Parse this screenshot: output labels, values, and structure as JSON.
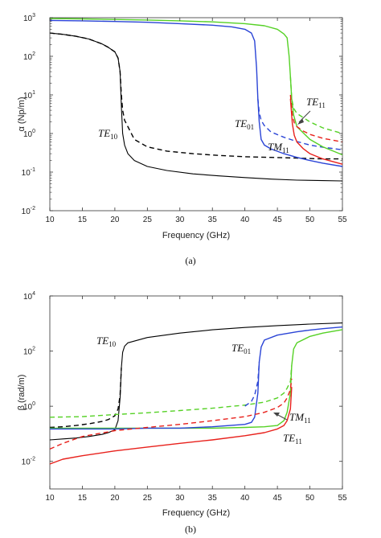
{
  "chart_data": [
    {
      "type": "line",
      "id": "a",
      "caption": "(a)",
      "xlabel": "Frequency (GHz)",
      "ylabel": "α (Np/m)",
      "xlim": [
        10,
        55
      ],
      "ylim": [
        0.01,
        1000
      ],
      "yscale": "log",
      "xticks": [
        "10",
        "15",
        "20",
        "25",
        "30",
        "35",
        "40",
        "45",
        "50",
        "55"
      ],
      "yticks": [
        {
          "base": "10",
          "exp": "-2",
          "value": 0.01
        },
        {
          "base": "10",
          "exp": "-1",
          "value": 0.1
        },
        {
          "base": "10",
          "exp": "0",
          "value": 1
        },
        {
          "base": "10",
          "exp": "1",
          "value": 10
        },
        {
          "base": "10",
          "exp": "2",
          "value": 100
        },
        {
          "base": "10",
          "exp": "3",
          "value": 1000
        }
      ],
      "grid": false,
      "series": [
        {
          "color": "#000000",
          "dash": false,
          "x": [
            10,
            12,
            14,
            16,
            18,
            19,
            20,
            20.5,
            20.8,
            21,
            21.2,
            21.5,
            22,
            23,
            25,
            28,
            32,
            36,
            40,
            44,
            48,
            52,
            55
          ],
          "y": [
            400,
            370,
            330,
            280,
            210,
            170,
            130,
            90,
            40,
            5,
            1,
            0.5,
            0.3,
            0.2,
            0.14,
            0.11,
            0.09,
            0.08,
            0.072,
            0.066,
            0.062,
            0.06,
            0.059
          ]
        },
        {
          "color": "#000000",
          "dash": true,
          "x": [
            10,
            12,
            14,
            16,
            18,
            19,
            20,
            20.5,
            20.8,
            21,
            21.2,
            21.5,
            22,
            23,
            25,
            28,
            32,
            36,
            40,
            44,
            48,
            52,
            55
          ],
          "y": [
            400,
            370,
            330,
            280,
            210,
            170,
            130,
            90,
            40,
            10,
            4,
            2.2,
            1.5,
            0.7,
            0.45,
            0.35,
            0.3,
            0.27,
            0.25,
            0.24,
            0.23,
            0.22,
            0.22
          ]
        },
        {
          "color": "#2a44d6",
          "dash": false,
          "x": [
            10,
            15,
            20,
            25,
            30,
            35,
            38,
            40,
            41,
            41.5,
            41.8,
            42,
            42.2,
            42.5,
            43,
            44,
            46,
            48,
            50,
            52,
            55
          ],
          "y": [
            850,
            830,
            800,
            760,
            700,
            640,
            580,
            500,
            400,
            250,
            50,
            8,
            2,
            0.7,
            0.5,
            0.4,
            0.3,
            0.24,
            0.2,
            0.17,
            0.14
          ]
        },
        {
          "color": "#2a44d6",
          "dash": true,
          "x": [
            42,
            42.2,
            42.5,
            43,
            44,
            46,
            48,
            50,
            52,
            55
          ],
          "y": [
            8,
            3.5,
            2.2,
            1.6,
            1.1,
            0.8,
            0.62,
            0.5,
            0.44,
            0.38
          ]
        },
        {
          "color": "#55d125",
          "dash": false,
          "x": [
            10,
            15,
            20,
            25,
            30,
            35,
            40,
            43,
            45,
            46,
            46.5,
            46.8,
            47,
            47.2,
            47.5,
            48,
            50,
            52,
            55
          ],
          "y": [
            950,
            930,
            900,
            870,
            830,
            780,
            700,
            620,
            500,
            380,
            300,
            100,
            30,
            8,
            3,
            1.5,
            0.7,
            0.45,
            0.28
          ]
        },
        {
          "color": "#55d125",
          "dash": true,
          "x": [
            47,
            47.2,
            47.5,
            48,
            50,
            52,
            55
          ],
          "y": [
            30,
            8,
            4.5,
            3.3,
            2,
            1.4,
            1.0
          ]
        },
        {
          "color": "#e8211c",
          "dash": false,
          "x": [
            47,
            47.3,
            47.6,
            48,
            49,
            50,
            52,
            55
          ],
          "y": [
            8,
            1.8,
            0.9,
            0.6,
            0.4,
            0.3,
            0.22,
            0.16
          ]
        },
        {
          "color": "#e8211c",
          "dash": true,
          "x": [
            47,
            47.3,
            47.6,
            48,
            49,
            50,
            52,
            55
          ],
          "y": [
            10,
            3,
            1.9,
            1.5,
            1.15,
            0.95,
            0.75,
            0.6
          ]
        }
      ],
      "annotations": [
        {
          "base": "TE",
          "sub": "10"
        },
        {
          "base": "TE",
          "sub": "01"
        },
        {
          "base": "TM",
          "sub": "11"
        },
        {
          "base": "TE",
          "sub": "11"
        }
      ]
    },
    {
      "type": "line",
      "id": "b",
      "caption": "(b)",
      "xlabel": "Frequency (GHz)",
      "ylabel": "β (rad/m)",
      "xlim": [
        10,
        55
      ],
      "ylim": [
        0.001,
        10000
      ],
      "yscale": "log",
      "xticks": [
        "10",
        "15",
        "20",
        "25",
        "30",
        "35",
        "40",
        "45",
        "50",
        "55"
      ],
      "yticks": [
        {
          "base": "10",
          "exp": "-2",
          "value": 0.01
        },
        {
          "base": "10",
          "exp": "0",
          "value": 1
        },
        {
          "base": "10",
          "exp": "2",
          "value": 100
        },
        {
          "base": "10",
          "exp": "4",
          "value": 10000
        }
      ],
      "grid": false,
      "series": [
        {
          "color": "#000000",
          "dash": false,
          "x": [
            10,
            12,
            14,
            16,
            18,
            19,
            20,
            20.5,
            20.8,
            21,
            21.2,
            21.5,
            22,
            25,
            30,
            35,
            40,
            45,
            50,
            55
          ],
          "y": [
            0.06,
            0.065,
            0.07,
            0.08,
            0.095,
            0.11,
            0.14,
            0.3,
            2,
            25,
            90,
            150,
            200,
            310,
            450,
            590,
            720,
            840,
            950,
            1050
          ]
        },
        {
          "color": "#000000",
          "dash": true,
          "x": [
            10,
            12,
            14,
            16,
            18,
            19,
            20,
            20.5,
            20.8,
            21
          ],
          "y": [
            0.17,
            0.18,
            0.2,
            0.23,
            0.28,
            0.33,
            0.45,
            0.8,
            2.5,
            25
          ]
        },
        {
          "color": "#55d125",
          "dash": false,
          "x": [
            10,
            15,
            20,
            25,
            30,
            35,
            40,
            43,
            45,
            46,
            46.5,
            47,
            47.2,
            47.5,
            48,
            50,
            52,
            55
          ],
          "y": [
            0.16,
            0.16,
            0.16,
            0.16,
            0.16,
            0.16,
            0.17,
            0.18,
            0.2,
            0.3,
            0.6,
            3,
            30,
            120,
            200,
            340,
            450,
            600
          ]
        },
        {
          "color": "#55d125",
          "dash": true,
          "x": [
            10,
            15,
            20,
            25,
            30,
            35,
            40,
            43,
            45,
            46,
            46.5,
            47,
            47.2
          ],
          "y": [
            0.4,
            0.42,
            0.5,
            0.58,
            0.7,
            0.85,
            1.1,
            1.4,
            2,
            3,
            4.5,
            8,
            30
          ]
        },
        {
          "color": "#2a44d6",
          "dash": false,
          "x": [
            10,
            15,
            20,
            25,
            30,
            35,
            40,
            41,
            41.5,
            42,
            42.2,
            42.5,
            43,
            45,
            48,
            50,
            52,
            55
          ],
          "y": [
            0.15,
            0.15,
            0.15,
            0.16,
            0.16,
            0.18,
            0.22,
            0.26,
            0.4,
            3,
            40,
            140,
            250,
            380,
            500,
            580,
            650,
            750
          ]
        },
        {
          "color": "#2a44d6",
          "dash": true,
          "x": [
            40,
            41,
            41.5,
            42,
            42.2
          ],
          "y": [
            1.0,
            1.5,
            2.5,
            8,
            40
          ]
        },
        {
          "color": "#e8211c",
          "dash": false,
          "x": [
            10,
            12,
            15,
            20,
            25,
            30,
            35,
            40,
            43,
            45,
            46,
            46.5,
            47,
            47.2
          ],
          "y": [
            0.008,
            0.012,
            0.016,
            0.024,
            0.033,
            0.045,
            0.06,
            0.085,
            0.11,
            0.15,
            0.2,
            0.3,
            0.8,
            5
          ]
        },
        {
          "color": "#e8211c",
          "dash": true,
          "x": [
            10,
            12,
            15,
            20,
            25,
            30,
            35,
            40,
            43,
            45,
            46,
            46.5,
            47,
            47.2
          ],
          "y": [
            0.028,
            0.045,
            0.08,
            0.13,
            0.17,
            0.22,
            0.3,
            0.42,
            0.6,
            0.9,
            1.3,
            2,
            4,
            10
          ]
        }
      ],
      "annotations": [
        {
          "base": "TE",
          "sub": "10"
        },
        {
          "base": "TE",
          "sub": "01"
        },
        {
          "base": "TM",
          "sub": "11"
        },
        {
          "base": "TE",
          "sub": "11"
        }
      ]
    }
  ]
}
